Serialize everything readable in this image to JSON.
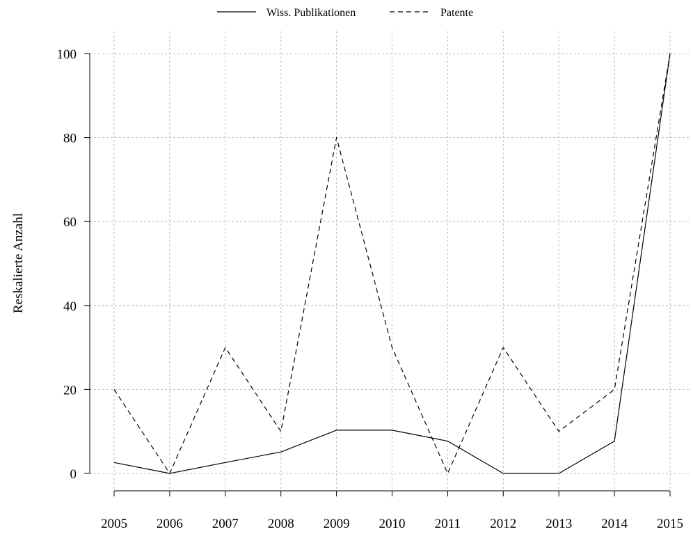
{
  "chart_data": {
    "type": "line",
    "title": "",
    "xlabel": "",
    "ylabel": "Reskalierte Anzahl",
    "categories": [
      "2005",
      "2006",
      "2007",
      "2008",
      "2009",
      "2010",
      "2011",
      "2012",
      "2013",
      "2014",
      "2015"
    ],
    "yticks": [
      "0",
      "20",
      "40",
      "60",
      "80",
      "100"
    ],
    "ylim": [
      0,
      100
    ],
    "grid": true,
    "legend_position": "top",
    "series": [
      {
        "name": "Wiss. Publikationen",
        "style": "solid",
        "values": [
          2.6,
          0,
          2.6,
          5.1,
          10.3,
          10.3,
          7.7,
          0,
          0,
          7.7,
          100
        ]
      },
      {
        "name": "Patente",
        "style": "dashed",
        "values": [
          20,
          0,
          30,
          10,
          80,
          30,
          0,
          30,
          10,
          20,
          100
        ]
      }
    ]
  }
}
